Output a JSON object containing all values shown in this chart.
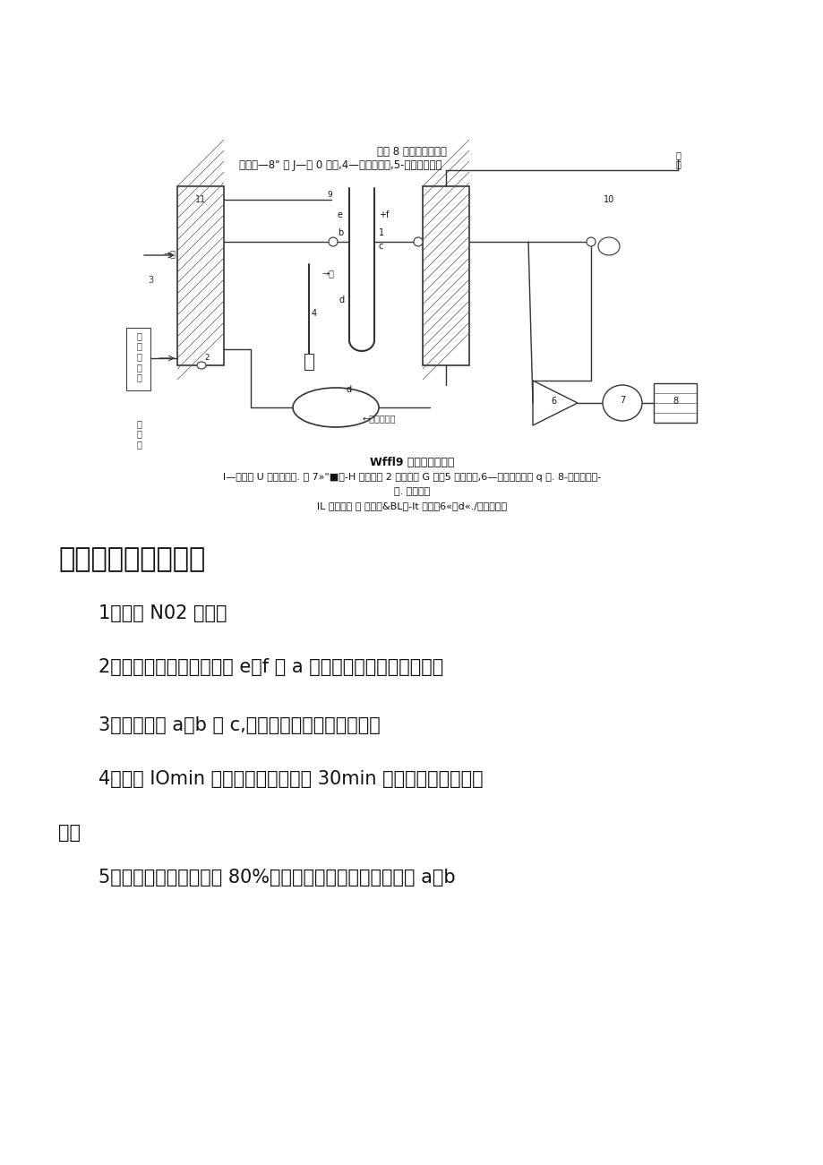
{
  "bg_color": "#ffffff",
  "diagram_caption_1": "的图 8 吸附器结构而图",
  "diagram_caption_2": "】一般—8\" 值 J—保 0 夹套,4—内一进气口,5-夹套蒸汽进口",
  "diagram_bold_caption": "Wffl9 活性强吸附装置",
  "diagram_caption_3": "l—夹套式 U 形七表耐器. 冬 7»\"■律-H 交比力取 2 一转子藻 G 汁，5 一电康病,6—蒸汉瓶户一电 q 套. 8-尚乐发，立-",
  "diagram_caption_4": "进. 取样口，",
  "diagram_caption_5": "lL 曲，取伴 门 】一用&BL、-It 彩陶，6«、d«./一我去我夹",
  "section_title": "四、实验方法和步骤",
  "step1": "1、准备 N02 吸收。",
  "step2": "2、检查管路系统，使阀门 e、f 和 a 关闭，处于吸收系统状态。",
  "step3": "3、开启阀门 a、b 和 c,同时记录开始吸附的时间。",
  "step4a": "4、运行 IOmin 后取样分析，此后每 30min 取样一次，每次取三",
  "step4b": "个。",
  "step5": "5、当吸附进化效率低于 80%时，停止吸附操作，关闭阀门 a、b"
}
